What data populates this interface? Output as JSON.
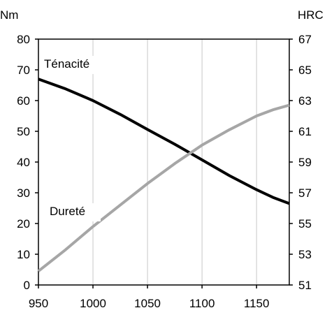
{
  "chart_data": {
    "type": "line",
    "x_ticks": [
      "950",
      "1000",
      "1050",
      "1100",
      "1150"
    ],
    "xlim": [
      950,
      1180
    ],
    "y_left": {
      "unit": "Nm",
      "ticks": [
        "0",
        "10",
        "20",
        "30",
        "40",
        "50",
        "60",
        "70",
        "80"
      ],
      "ylim": [
        0,
        80
      ]
    },
    "y_right": {
      "unit": "HRC",
      "ticks": [
        "51",
        "53",
        "55",
        "57",
        "59",
        "61",
        "63",
        "65",
        "67"
      ],
      "ylim": [
        51,
        67
      ]
    },
    "grid": {
      "vertical": true,
      "horizontal": false
    },
    "series": [
      {
        "name": "Ténacité",
        "axis": "left",
        "color": "#000000",
        "x": [
          950,
          975,
          1000,
          1025,
          1050,
          1075,
          1100,
          1125,
          1150,
          1165,
          1180
        ],
        "y": [
          67,
          63.8,
          60,
          55.5,
          50.6,
          45.8,
          40.7,
          35.6,
          31,
          28.5,
          26.5
        ]
      },
      {
        "name": "Dureté",
        "axis": "right",
        "color": "#a6a6a6",
        "x": [
          950,
          975,
          1000,
          1025,
          1050,
          1075,
          1100,
          1125,
          1150,
          1165,
          1180
        ],
        "y": [
          51.9,
          53.3,
          54.8,
          56.2,
          57.6,
          58.9,
          60.1,
          61.1,
          62,
          62.4,
          62.7
        ]
      }
    ]
  }
}
